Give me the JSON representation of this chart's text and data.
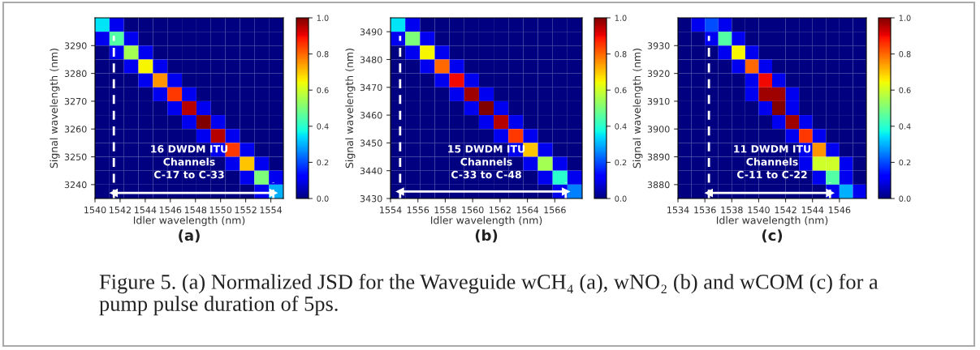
{
  "chart_data": [
    {
      "type": "heatmap",
      "xlabel": "Idler wavelength (nm)",
      "ylabel": "Signal wavelength (nm)",
      "xlim": [
        1540,
        1555
      ],
      "ylim": [
        3235,
        3300
      ],
      "xticks": [
        1540,
        1542,
        1544,
        1546,
        1548,
        1550,
        1552,
        1554
      ],
      "yticks": [
        3240,
        3250,
        3260,
        3270,
        3280,
        3290
      ],
      "clim": [
        0,
        1
      ],
      "cticks": [
        {
          "value": 0,
          "label": "0.0"
        },
        {
          "value": 0.2,
          "label": "0.2"
        },
        {
          "value": 0.4,
          "label": "0.4"
        },
        {
          "value": 0.6,
          "label": "0.6"
        },
        {
          "value": 0.8,
          "label": "0.8"
        },
        {
          "value": 1,
          "label": "1.0"
        }
      ],
      "cells": [
        [
          0.35,
          0.1,
          0,
          0,
          0,
          0,
          0,
          0,
          0,
          0,
          0,
          0,
          0
        ],
        [
          0.1,
          0.45,
          0.1,
          0,
          0,
          0,
          0,
          0,
          0,
          0,
          0,
          0,
          0
        ],
        [
          0,
          0.1,
          0.55,
          0.1,
          0,
          0,
          0,
          0,
          0,
          0,
          0,
          0,
          0
        ],
        [
          0,
          0,
          0.1,
          0.65,
          0.1,
          0,
          0,
          0,
          0,
          0,
          0,
          0,
          0
        ],
        [
          0,
          0,
          0,
          0.1,
          0.75,
          0.1,
          0,
          0,
          0,
          0,
          0,
          0,
          0
        ],
        [
          0,
          0,
          0,
          0,
          0.1,
          0.85,
          0.1,
          0,
          0,
          0,
          0,
          0,
          0
        ],
        [
          0,
          0,
          0,
          0,
          0,
          0.1,
          0.95,
          0.1,
          0,
          0,
          0,
          0,
          0
        ],
        [
          0,
          0,
          0,
          0,
          0,
          0,
          0.1,
          1.0,
          0.1,
          0,
          0,
          0,
          0
        ],
        [
          0,
          0,
          0,
          0,
          0,
          0,
          0,
          0.1,
          0.95,
          0.1,
          0,
          0,
          0
        ],
        [
          0,
          0,
          0,
          0,
          0,
          0,
          0,
          0,
          0.1,
          0.85,
          0.1,
          0,
          0
        ],
        [
          0,
          0,
          0,
          0,
          0,
          0,
          0,
          0,
          0,
          0.1,
          0.7,
          0.1,
          0
        ],
        [
          0,
          0,
          0,
          0,
          0,
          0,
          0,
          0,
          0,
          0,
          0.1,
          0.5,
          0.1
        ],
        [
          0,
          0,
          0,
          0,
          0,
          0,
          0,
          0,
          0,
          0,
          0,
          0.1,
          0.3
        ]
      ],
      "ref_lines": [
        {
          "axis": "x",
          "value": 1541.5,
          "color": "#ffffff",
          "line_style": "dashed"
        },
        {
          "axis": "x",
          "value": 1554.2,
          "color": "#ffffff",
          "line_style": "dashed"
        }
      ],
      "series": [
        {
          "type": "line",
          "x": [
            1541.5,
            1554.2
          ],
          "values": [
            3237,
            3237
          ],
          "color": "#ffffff",
          "marker": "triangle"
        }
      ],
      "annotations": [
        "16 DWDM ITU\nChannels\nC-17 to C-33",
        "(a)"
      ]
    },
    {
      "type": "heatmap",
      "xlabel": "Idler wavelength (nm)",
      "ylabel": "Signal wavelength (nm)",
      "xlim": [
        1554,
        1568
      ],
      "ylim": [
        3430,
        3495
      ],
      "xticks": [
        1554,
        1556,
        1558,
        1560,
        1562,
        1564,
        1566
      ],
      "yticks": [
        3430,
        3440,
        3450,
        3460,
        3470,
        3480,
        3490
      ],
      "clim": [
        0,
        1
      ],
      "cticks": [
        {
          "value": 0,
          "label": "0.0"
        },
        {
          "value": 0.2,
          "label": "0.2"
        },
        {
          "value": 0.4,
          "label": "0.4"
        },
        {
          "value": 0.6,
          "label": "0.6"
        },
        {
          "value": 0.8,
          "label": "0.8"
        },
        {
          "value": 1,
          "label": "1.0"
        }
      ],
      "cells": [
        [
          0.35,
          0.1,
          0,
          0,
          0,
          0,
          0,
          0,
          0,
          0,
          0,
          0,
          0
        ],
        [
          0.1,
          0.5,
          0.1,
          0,
          0,
          0,
          0,
          0,
          0,
          0,
          0,
          0,
          0
        ],
        [
          0,
          0.1,
          0.65,
          0.1,
          0,
          0,
          0,
          0,
          0,
          0,
          0,
          0,
          0
        ],
        [
          0,
          0,
          0.1,
          0.8,
          0.1,
          0,
          0,
          0,
          0,
          0,
          0,
          0,
          0
        ],
        [
          0,
          0,
          0,
          0.1,
          0.9,
          0.1,
          0,
          0,
          0,
          0,
          0,
          0,
          0
        ],
        [
          0,
          0,
          0,
          0,
          0.1,
          0.97,
          0.1,
          0,
          0,
          0,
          0,
          0,
          0
        ],
        [
          0,
          0,
          0,
          0,
          0,
          0.1,
          1.0,
          0.1,
          0,
          0,
          0,
          0,
          0
        ],
        [
          0,
          0,
          0,
          0,
          0,
          0,
          0.1,
          0.95,
          0.1,
          0,
          0,
          0,
          0
        ],
        [
          0,
          0,
          0,
          0,
          0,
          0,
          0,
          0.1,
          0.85,
          0.1,
          0,
          0,
          0
        ],
        [
          0,
          0,
          0,
          0,
          0,
          0,
          0,
          0,
          0.1,
          0.7,
          0.1,
          0,
          0
        ],
        [
          0,
          0,
          0,
          0,
          0,
          0,
          0,
          0,
          0,
          0.1,
          0.55,
          0.1,
          0
        ],
        [
          0,
          0,
          0,
          0,
          0,
          0,
          0,
          0,
          0,
          0,
          0.1,
          0.4,
          0.1
        ],
        [
          0,
          0,
          0,
          0,
          0,
          0,
          0,
          0,
          0,
          0,
          0,
          0.1,
          0.25
        ]
      ],
      "ref_lines": [
        {
          "axis": "x",
          "value": 1554.7,
          "color": "#ffffff",
          "line_style": "dashed"
        },
        {
          "axis": "x",
          "value": 1566.8,
          "color": "#ffffff",
          "line_style": "dashed"
        }
      ],
      "series": [
        {
          "type": "line",
          "x": [
            1554.7,
            1566.8
          ],
          "values": [
            3432.5,
            3432.5
          ],
          "color": "#ffffff",
          "marker": "triangle"
        }
      ],
      "annotations": [
        "15 DWDM ITU\nChannels\nC-33 to C-48",
        "(b)"
      ]
    },
    {
      "type": "heatmap",
      "xlabel": "Idler wavelength (nm)",
      "ylabel": "Signal wavelength (nm)",
      "xlim": [
        1534,
        1548
      ],
      "ylim": [
        3875,
        3940
      ],
      "xticks": [
        1534,
        1536,
        1538,
        1540,
        1542,
        1544,
        1546
      ],
      "yticks": [
        3880,
        3890,
        3900,
        3910,
        3920,
        3930
      ],
      "clim": [
        0,
        1
      ],
      "cticks": [
        {
          "value": 0,
          "label": "0.0"
        },
        {
          "value": 0.2,
          "label": "0.2"
        },
        {
          "value": 0.4,
          "label": "0.4"
        },
        {
          "value": 0.6,
          "label": "0.6"
        },
        {
          "value": 0.8,
          "label": "0.8"
        },
        {
          "value": 1,
          "label": "1.0"
        }
      ],
      "cells": [
        [
          0,
          0.1,
          0.2,
          0.1,
          0,
          0,
          0,
          0,
          0,
          0,
          0,
          0,
          0,
          0
        ],
        [
          0,
          0,
          0.1,
          0.45,
          0.1,
          0,
          0,
          0,
          0,
          0,
          0,
          0,
          0,
          0
        ],
        [
          0,
          0,
          0,
          0.1,
          0.65,
          0.1,
          0,
          0,
          0,
          0,
          0,
          0,
          0,
          0
        ],
        [
          0,
          0,
          0,
          0,
          0.1,
          0.8,
          0.1,
          0,
          0,
          0,
          0,
          0,
          0,
          0
        ],
        [
          0,
          0,
          0,
          0,
          0,
          0.1,
          0.9,
          0.1,
          0,
          0,
          0,
          0,
          0,
          0
        ],
        [
          0,
          0,
          0,
          0,
          0,
          0.1,
          0.97,
          0.97,
          0.1,
          0,
          0,
          0,
          0,
          0
        ],
        [
          0,
          0,
          0,
          0,
          0,
          0,
          0.1,
          1.0,
          0.1,
          0,
          0,
          0,
          0,
          0
        ],
        [
          0,
          0,
          0,
          0,
          0,
          0,
          0,
          0.1,
          0.97,
          0.1,
          0,
          0,
          0,
          0
        ],
        [
          0,
          0,
          0,
          0,
          0,
          0,
          0,
          0,
          0.1,
          0.85,
          0.1,
          0,
          0,
          0
        ],
        [
          0,
          0,
          0,
          0,
          0,
          0,
          0,
          0,
          0,
          0.1,
          0.75,
          0.1,
          0,
          0
        ],
        [
          0,
          0,
          0,
          0,
          0,
          0,
          0,
          0,
          0,
          0.1,
          0.6,
          0.6,
          0.1,
          0
        ],
        [
          0,
          0,
          0,
          0,
          0,
          0,
          0,
          0,
          0,
          0,
          0.1,
          0.45,
          0.1,
          0
        ],
        [
          0,
          0,
          0,
          0,
          0,
          0,
          0,
          0,
          0,
          0,
          0,
          0.1,
          0.3,
          0.1
        ]
      ],
      "ref_lines": [
        {
          "axis": "x",
          "value": 1536.3,
          "color": "#ffffff",
          "line_style": "dashed"
        },
        {
          "axis": "x",
          "value": 1545.3,
          "color": "#ffffff",
          "line_style": "dashed"
        }
      ],
      "series": [
        {
          "type": "line",
          "x": [
            1536.3,
            1545.3
          ],
          "values": [
            3877,
            3877
          ],
          "color": "#ffffff",
          "marker": "triangle"
        }
      ],
      "annotations": [
        "11 DWDM ITU\nChannels\nC-11 to C-22",
        "(c)",
        "Figure 5. (a) Normalized JSD for the Waveguide wCH₄ (a), wNO₂ (b) and wCOM (c) for a pump pulse duration of 5ps."
      ]
    }
  ]
}
